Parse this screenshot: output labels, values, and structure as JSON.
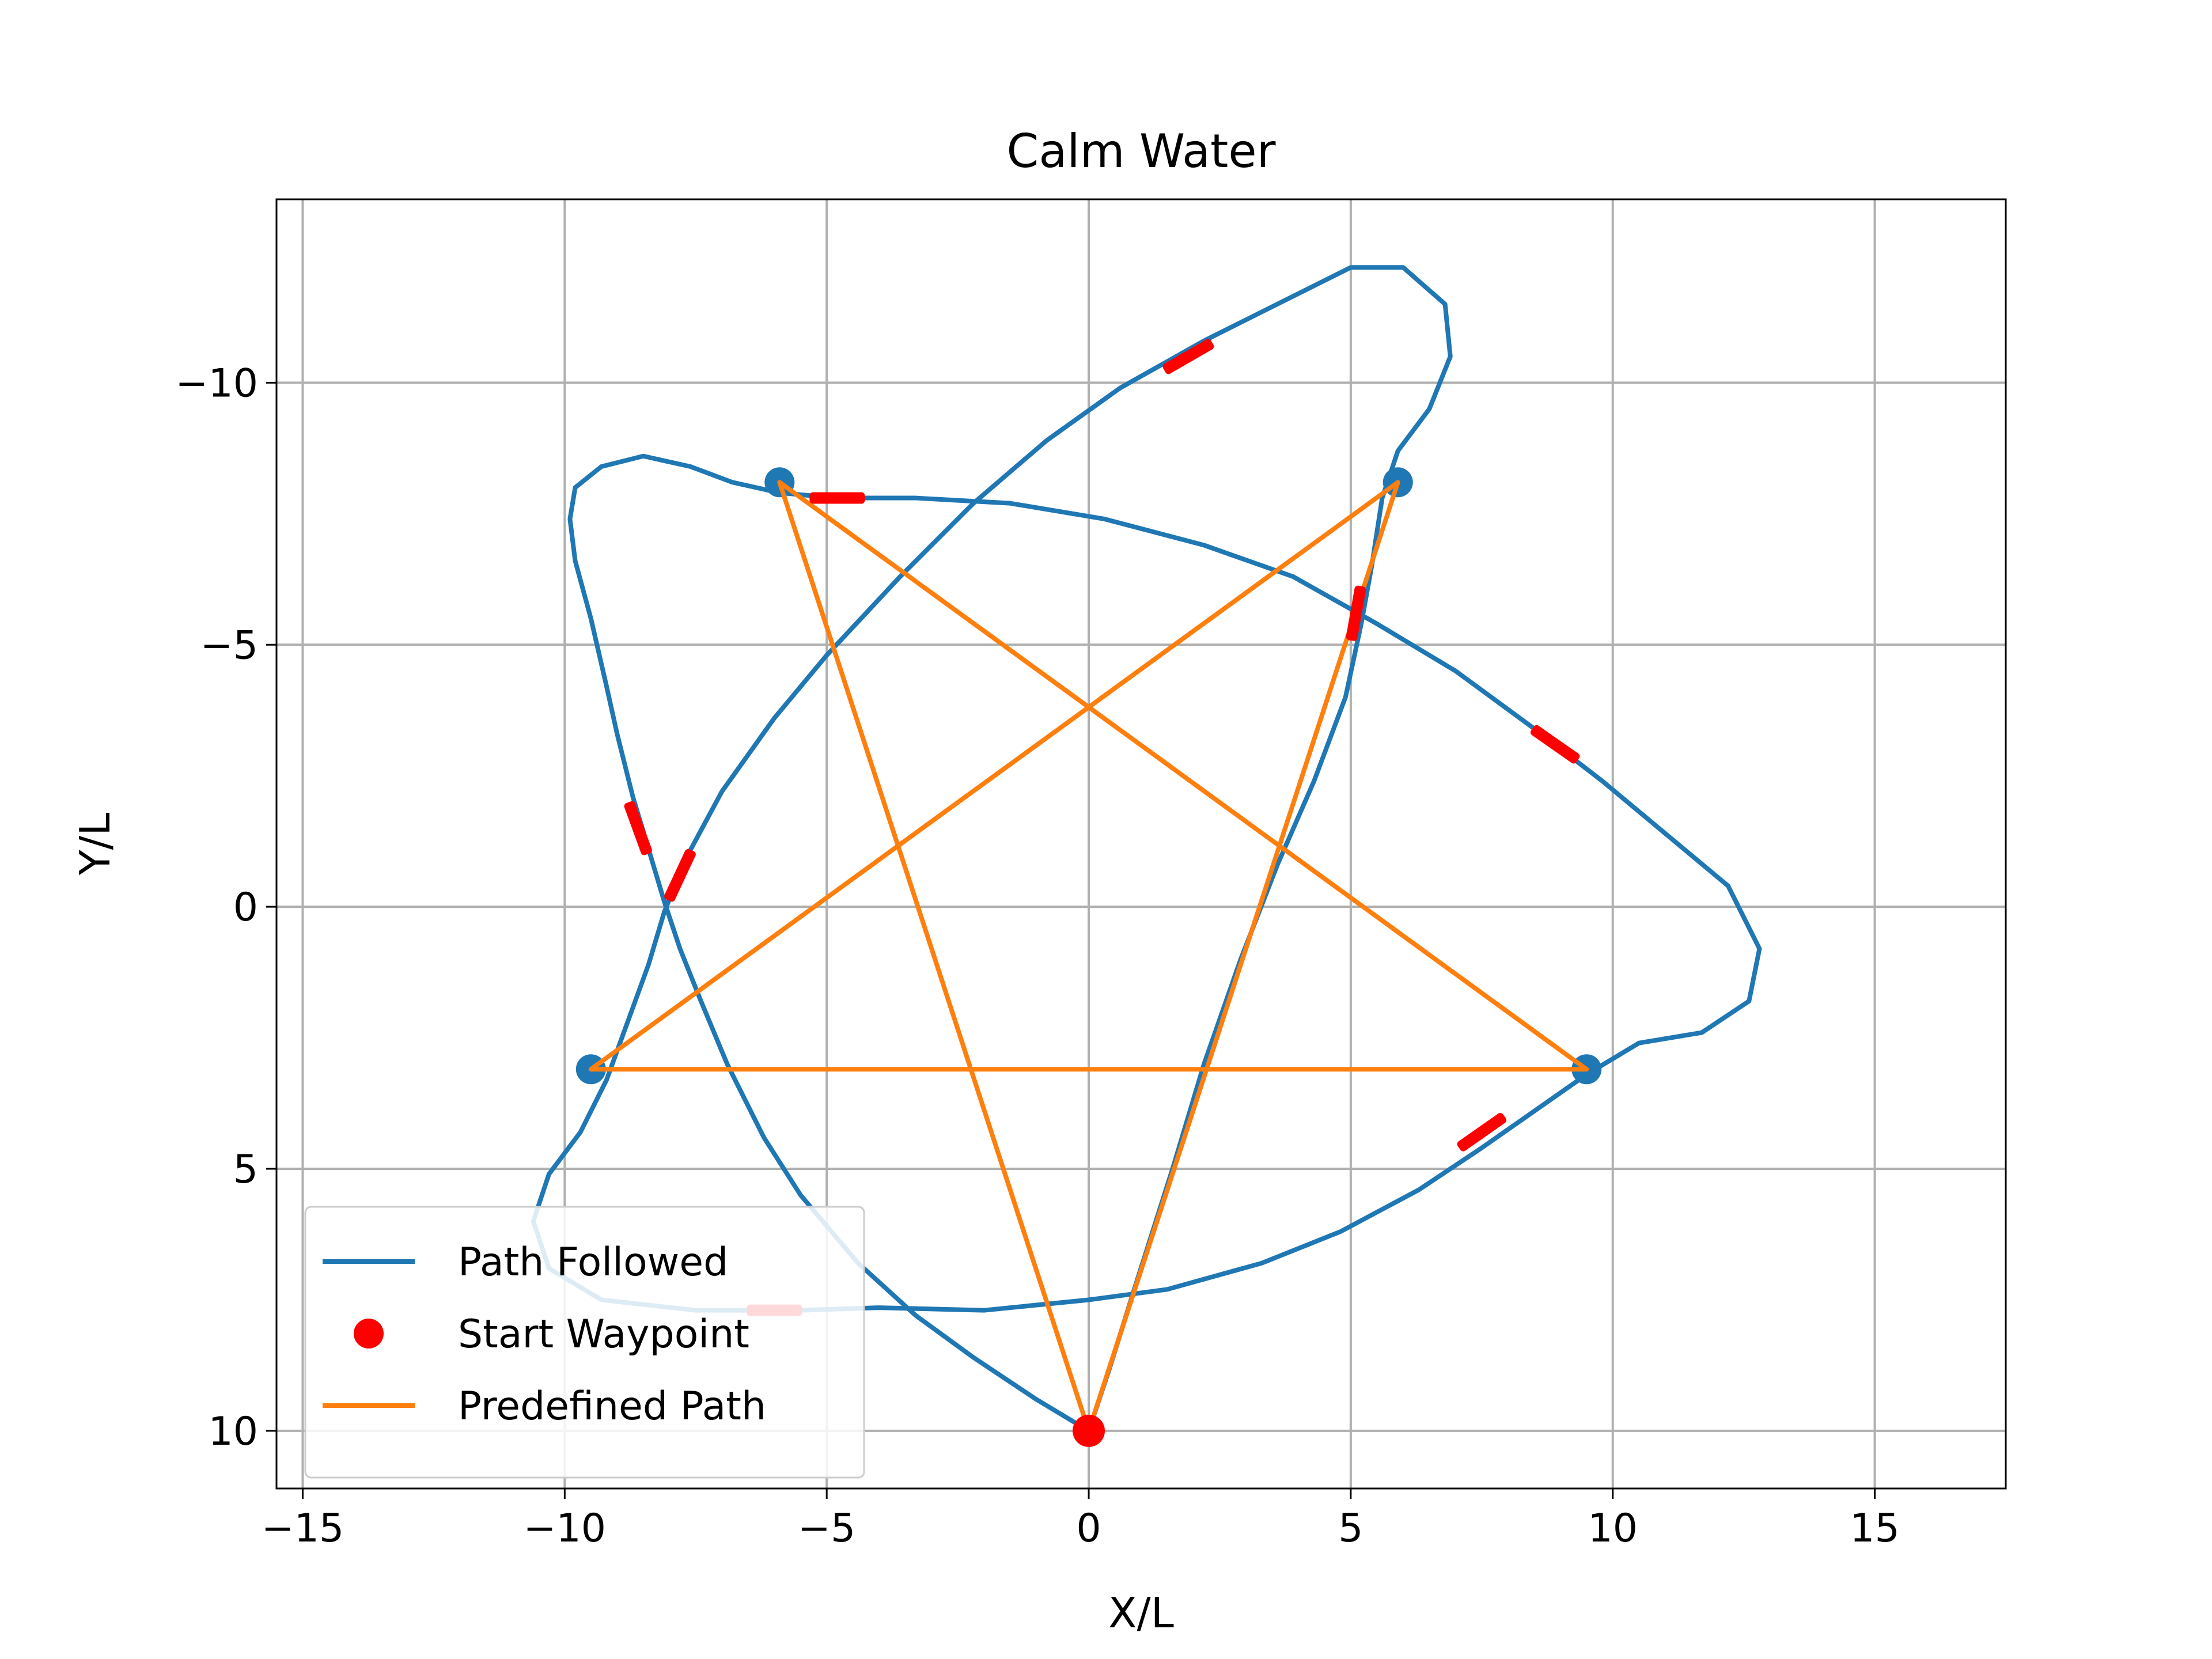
{
  "chart_data": {
    "type": "line",
    "title": "Calm Water",
    "xlabel": "X/L",
    "ylabel": "Y/L",
    "xlim": [
      -15.5,
      17.5
    ],
    "ylim": [
      11.1,
      -13.5
    ],
    "y_inverted": true,
    "grid": true,
    "xticks": [
      -15,
      -10,
      -5,
      0,
      5,
      10,
      15
    ],
    "xtick_labels": [
      "−15",
      "−10",
      "−5",
      "0",
      "5",
      "10",
      "15"
    ],
    "yticks": [
      -10,
      -5,
      0,
      5,
      10
    ],
    "ytick_labels": [
      "−10",
      "−5",
      "0",
      "5",
      "10"
    ],
    "legend": {
      "position": "lower left",
      "entries": [
        {
          "label": "Path Followed",
          "kind": "line",
          "color": "#1f77b4"
        },
        {
          "label": "Start Waypoint",
          "kind": "marker",
          "color": "#ff0000"
        },
        {
          "label": "Predefined Path",
          "kind": "line",
          "color": "#ff7f0e"
        }
      ]
    },
    "series": [
      {
        "name": "Path Followed",
        "color": "#1f77b4",
        "points": [
          [
            0,
            10
          ],
          [
            -1,
            9.4
          ],
          [
            -2.2,
            8.6
          ],
          [
            -3.3,
            7.8
          ],
          [
            -4.4,
            6.8
          ],
          [
            -5.5,
            5.5
          ],
          [
            -6.2,
            4.4
          ],
          [
            -6.9,
            3.0
          ],
          [
            -7.4,
            1.8
          ],
          [
            -7.8,
            0.8
          ],
          [
            -8.1,
            -0.1
          ],
          [
            -8.4,
            -1.1
          ],
          [
            -8.7,
            -2.1
          ],
          [
            -9.0,
            -3.3
          ],
          [
            -9.2,
            -4.2
          ],
          [
            -9.5,
            -5.5
          ],
          [
            -9.8,
            -6.6
          ],
          [
            -9.9,
            -7.4
          ],
          [
            -9.8,
            -8.0
          ],
          [
            -9.3,
            -8.4
          ],
          [
            -8.5,
            -8.6
          ],
          [
            -7.6,
            -8.4
          ],
          [
            -6.8,
            -8.1
          ],
          [
            -5.9,
            -7.9
          ],
          [
            -4.8,
            -7.8
          ],
          [
            -3.3,
            -7.8
          ],
          [
            -1.5,
            -7.7
          ],
          [
            0.3,
            -7.4
          ],
          [
            2.2,
            -6.9
          ],
          [
            3.9,
            -6.3
          ],
          [
            5.5,
            -5.4
          ],
          [
            7.0,
            -4.5
          ],
          [
            8.5,
            -3.4
          ],
          [
            9.8,
            -2.4
          ],
          [
            11.0,
            -1.4
          ],
          [
            12.2,
            -0.4
          ],
          [
            12.8,
            0.8
          ],
          [
            12.6,
            1.8
          ],
          [
            11.7,
            2.4
          ],
          [
            10.5,
            2.6
          ],
          [
            9.5,
            3.2
          ],
          [
            8.5,
            3.9
          ],
          [
            7.5,
            4.6
          ],
          [
            6.3,
            5.4
          ],
          [
            4.8,
            6.2
          ],
          [
            3.3,
            6.8
          ],
          [
            1.5,
            7.3
          ],
          [
            0,
            7.5
          ],
          [
            -2.0,
            7.7
          ],
          [
            -4.0,
            7.65
          ],
          [
            -5.5,
            7.7
          ],
          [
            -7.5,
            7.7
          ],
          [
            -9.3,
            7.5
          ],
          [
            -10.3,
            6.9
          ],
          [
            -10.6,
            6.0
          ],
          [
            -10.3,
            5.1
          ],
          [
            -9.7,
            4.3
          ],
          [
            -9.2,
            3.3
          ],
          [
            -8.8,
            2.2
          ],
          [
            -8.4,
            1.1
          ],
          [
            -8.1,
            0.1
          ],
          [
            -7.7,
            -0.9
          ],
          [
            -7.0,
            -2.2
          ],
          [
            -6.0,
            -3.6
          ],
          [
            -5.0,
            -4.8
          ],
          [
            -3.6,
            -6.3
          ],
          [
            -2.2,
            -7.7
          ],
          [
            -0.8,
            -8.9
          ],
          [
            0.6,
            -9.9
          ],
          [
            2.2,
            -10.8
          ],
          [
            3.8,
            -11.6
          ],
          [
            5.0,
            -12.2
          ],
          [
            6.0,
            -12.2
          ],
          [
            6.8,
            -11.5
          ],
          [
            6.9,
            -10.5
          ],
          [
            6.5,
            -9.5
          ],
          [
            5.9,
            -8.7
          ],
          [
            5.6,
            -7.8
          ],
          [
            5.4,
            -6.5
          ],
          [
            5.2,
            -5.4
          ],
          [
            4.9,
            -4.0
          ],
          [
            4.3,
            -2.4
          ],
          [
            3.6,
            -0.8
          ],
          [
            2.9,
            1.0
          ],
          [
            2.2,
            3.0
          ],
          [
            1.6,
            5.0
          ],
          [
            0.9,
            7.2
          ],
          [
            0.4,
            8.8
          ],
          [
            0,
            10
          ]
        ]
      },
      {
        "name": "Predefined Path",
        "color": "#ff7f0e",
        "points": [
          [
            0,
            10
          ],
          [
            -5.9,
            -8.1
          ],
          [
            9.5,
            3.1
          ],
          [
            -9.5,
            3.1
          ],
          [
            5.9,
            -8.1
          ],
          [
            0,
            10
          ]
        ]
      }
    ],
    "start_waypoint": {
      "x": 0,
      "y": 10,
      "color": "#ff0000"
    },
    "waypoints": [
      [
        -5.9,
        -8.1
      ],
      [
        5.9,
        -8.1
      ],
      [
        9.5,
        3.1
      ],
      [
        -9.5,
        3.1
      ]
    ],
    "vessel_markers": [
      {
        "x": 1.9,
        "y": -10.5,
        "angle_deg": -30
      },
      {
        "x": -4.8,
        "y": -7.8,
        "angle_deg": 0
      },
      {
        "x": 5.1,
        "y": -5.6,
        "angle_deg": -80
      },
      {
        "x": 8.9,
        "y": -3.1,
        "angle_deg": 35
      },
      {
        "x": -8.6,
        "y": -1.5,
        "angle_deg": 70
      },
      {
        "x": -7.8,
        "y": -0.6,
        "angle_deg": -65
      },
      {
        "x": 7.5,
        "y": 4.3,
        "angle_deg": -35
      },
      {
        "x": -6.0,
        "y": 7.7,
        "angle_deg": 0
      }
    ],
    "vessel_color": "#ff0000"
  }
}
